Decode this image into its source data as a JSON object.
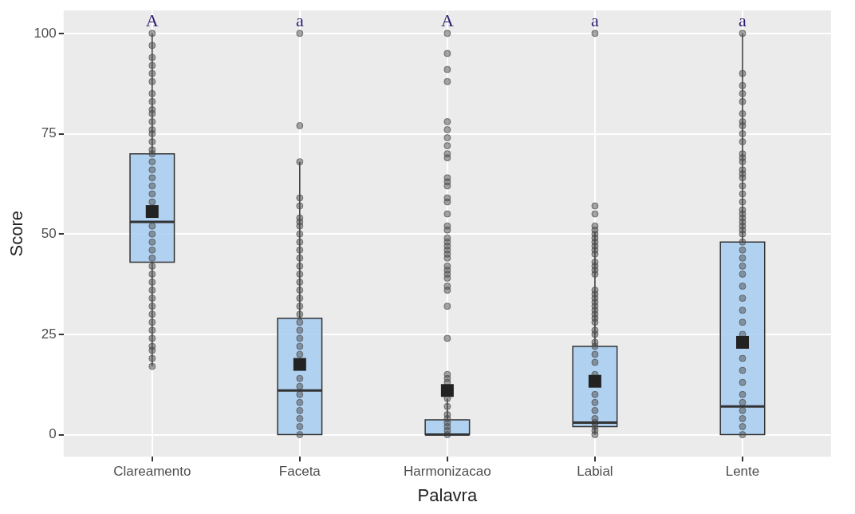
{
  "chart_data": {
    "type": "box",
    "xlabel": "Palavra",
    "ylabel": "Score",
    "categories": [
      "Clareamento",
      "Faceta",
      "Harmonizacao",
      "Labial",
      "Lente"
    ],
    "ylim": [
      -5.5,
      105.7
    ],
    "yticks": [
      0,
      25,
      50,
      75,
      100
    ],
    "grid": true,
    "legend": false,
    "color": "#a6cdf1",
    "boxes": [
      {
        "low": 17,
        "q1": 43,
        "median": 53,
        "q3": 70,
        "high": 100,
        "mean": 55.6
      },
      {
        "low": 0,
        "q1": 0,
        "median": 11,
        "q3": 29,
        "high": 68,
        "mean": 17.5
      },
      {
        "low": 0,
        "q1": 0,
        "median": 0,
        "q3": 3.7,
        "high": 9,
        "mean": 11
      },
      {
        "low": 0,
        "q1": 2,
        "median": 3,
        "q3": 22,
        "high": 50.5,
        "mean": 13.3
      },
      {
        "low": 0,
        "q1": 0,
        "median": 7,
        "q3": 48,
        "high": 100,
        "mean": 23
      }
    ],
    "series": [
      {
        "type": "scatter",
        "color": "#4d4d4d",
        "x": [
          "Clareamento",
          "Clareamento",
          "Clareamento",
          "Clareamento",
          "Clareamento",
          "Clareamento",
          "Clareamento",
          "Clareamento",
          "Clareamento",
          "Clareamento",
          "Clareamento",
          "Clareamento",
          "Clareamento",
          "Clareamento",
          "Clareamento",
          "Clareamento",
          "Clareamento",
          "Clareamento",
          "Clareamento",
          "Clareamento",
          "Clareamento",
          "Clareamento",
          "Clareamento",
          "Clareamento",
          "Clareamento",
          "Clareamento",
          "Clareamento",
          "Clareamento",
          "Clareamento",
          "Clareamento",
          "Clareamento",
          "Clareamento",
          "Clareamento",
          "Clareamento",
          "Clareamento",
          "Clareamento",
          "Clareamento",
          "Clareamento",
          "Clareamento",
          "Clareamento",
          "Clareamento",
          "Faceta",
          "Faceta",
          "Faceta",
          "Faceta",
          "Faceta",
          "Faceta",
          "Faceta",
          "Faceta",
          "Faceta",
          "Faceta",
          "Faceta",
          "Faceta",
          "Faceta",
          "Faceta",
          "Faceta",
          "Faceta",
          "Faceta",
          "Faceta",
          "Faceta",
          "Faceta",
          "Faceta",
          "Faceta",
          "Faceta",
          "Faceta",
          "Faceta",
          "Faceta",
          "Faceta",
          "Faceta",
          "Faceta",
          "Faceta",
          "Faceta",
          "Faceta",
          "Harmonizacao",
          "Harmonizacao",
          "Harmonizacao",
          "Harmonizacao",
          "Harmonizacao",
          "Harmonizacao",
          "Harmonizacao",
          "Harmonizacao",
          "Harmonizacao",
          "Harmonizacao",
          "Harmonizacao",
          "Harmonizacao",
          "Harmonizacao",
          "Harmonizacao",
          "Harmonizacao",
          "Harmonizacao",
          "Harmonizacao",
          "Harmonizacao",
          "Harmonizacao",
          "Harmonizacao",
          "Harmonizacao",
          "Harmonizacao",
          "Harmonizacao",
          "Harmonizacao",
          "Harmonizacao",
          "Harmonizacao",
          "Harmonizacao",
          "Harmonizacao",
          "Harmonizacao",
          "Harmonizacao",
          "Harmonizacao",
          "Harmonizacao",
          "Harmonizacao",
          "Harmonizacao",
          "Harmonizacao",
          "Harmonizacao",
          "Harmonizacao",
          "Harmonizacao",
          "Harmonizacao",
          "Harmonizacao",
          "Harmonizacao",
          "Harmonizacao",
          "Harmonizacao",
          "Labial",
          "Labial",
          "Labial",
          "Labial",
          "Labial",
          "Labial",
          "Labial",
          "Labial",
          "Labial",
          "Labial",
          "Labial",
          "Labial",
          "Labial",
          "Labial",
          "Labial",
          "Labial",
          "Labial",
          "Labial",
          "Labial",
          "Labial",
          "Labial",
          "Labial",
          "Labial",
          "Labial",
          "Labial",
          "Labial",
          "Labial",
          "Labial",
          "Labial",
          "Labial",
          "Labial",
          "Labial",
          "Labial",
          "Labial",
          "Labial",
          "Labial",
          "Labial",
          "Labial",
          "Labial",
          "Lente",
          "Lente",
          "Lente",
          "Lente",
          "Lente",
          "Lente",
          "Lente",
          "Lente",
          "Lente",
          "Lente",
          "Lente",
          "Lente",
          "Lente",
          "Lente",
          "Lente",
          "Lente",
          "Lente",
          "Lente",
          "Lente",
          "Lente",
          "Lente",
          "Lente",
          "Lente",
          "Lente",
          "Lente",
          "Lente",
          "Lente",
          "Lente",
          "Lente",
          "Lente",
          "Lente",
          "Lente",
          "Lente",
          "Lente",
          "Lente",
          "Lente",
          "Lente",
          "Lente",
          "Lente",
          "Lente",
          "Lente",
          "Lente",
          "Lente",
          "Lente",
          "Lente"
        ],
        "values": [
          100,
          97,
          94,
          92,
          90,
          88,
          85,
          83,
          81,
          80,
          78,
          76,
          75,
          73,
          71,
          70,
          68,
          66,
          64,
          62,
          60,
          58,
          52,
          50,
          48,
          46,
          44,
          42,
          40,
          38,
          36,
          34,
          32,
          30,
          28,
          26,
          24,
          22,
          21,
          19,
          17,
          100,
          77,
          68,
          59,
          57,
          54,
          53,
          52,
          50,
          48,
          46,
          44,
          42,
          40,
          38,
          36,
          34,
          32,
          30,
          28,
          26,
          24,
          22,
          20,
          14,
          12,
          10,
          8,
          6,
          4,
          2,
          0,
          100,
          95,
          91,
          88,
          78,
          76,
          74,
          72,
          70,
          69,
          64,
          63,
          62,
          59,
          58,
          55,
          52,
          51,
          49,
          48,
          47,
          46,
          45,
          44,
          42,
          41,
          40,
          39,
          37,
          36,
          32,
          24,
          15,
          14,
          13,
          9,
          7,
          5,
          4,
          3,
          2,
          1,
          0,
          100,
          57,
          55,
          52,
          51,
          50,
          49,
          48,
          47,
          46,
          45,
          43,
          42,
          41,
          40,
          36,
          35,
          34,
          33,
          32,
          31,
          30,
          29,
          28,
          26,
          25,
          23,
          22,
          20,
          18,
          15,
          10,
          8,
          6,
          4,
          3,
          2,
          1,
          0,
          100,
          90,
          87,
          85,
          83,
          80,
          78,
          77,
          75,
          73,
          70,
          69,
          68,
          66,
          65,
          64,
          62,
          60,
          58,
          56,
          55,
          54,
          53,
          52,
          51,
          50,
          48,
          46,
          44,
          42,
          40,
          37,
          34,
          31,
          28,
          25,
          19,
          16,
          13,
          10,
          8,
          6,
          4,
          2,
          0
        ]
      }
    ],
    "annotations": [
      "A",
      "a",
      "A",
      "a",
      "a"
    ]
  }
}
